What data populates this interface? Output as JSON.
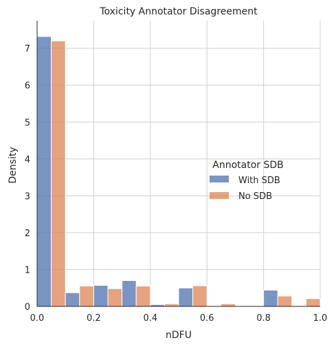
{
  "chart_data": {
    "type": "bar",
    "title": "Toxicity Annotator Disagreement",
    "xlabel": "nDFU",
    "ylabel": "Density",
    "xlim": [
      0,
      1
    ],
    "ylim": [
      0,
      7.75
    ],
    "x_ticks": [
      0.0,
      0.2,
      0.4,
      0.6,
      0.8,
      1.0
    ],
    "x_tick_labels": [
      "0.0",
      "0.2",
      "0.4",
      "0.6",
      "0.8",
      "1.0"
    ],
    "y_ticks": [
      0,
      1,
      2,
      3,
      4,
      5,
      6,
      7
    ],
    "y_tick_labels": [
      "0",
      "1",
      "2",
      "3",
      "4",
      "5",
      "6",
      "7"
    ],
    "grid": true,
    "bin_edges": [
      0.0,
      0.1,
      0.2,
      0.3,
      0.4,
      0.5,
      0.6,
      0.7,
      0.8,
      0.9,
      1.0
    ],
    "legend": {
      "title": "Annotator SDB",
      "placement": "center-right"
    },
    "series": [
      {
        "name": "With SDB",
        "color": "#4c72b0",
        "values": [
          7.32,
          0.37,
          0.57,
          0.7,
          0.05,
          0.5,
          0.0,
          0.0,
          0.44,
          0.0
        ]
      },
      {
        "name": "No SDB",
        "color": "#dd8452",
        "values": [
          7.2,
          0.55,
          0.48,
          0.55,
          0.07,
          0.56,
          0.07,
          0.0,
          0.28,
          0.21
        ]
      }
    ]
  }
}
